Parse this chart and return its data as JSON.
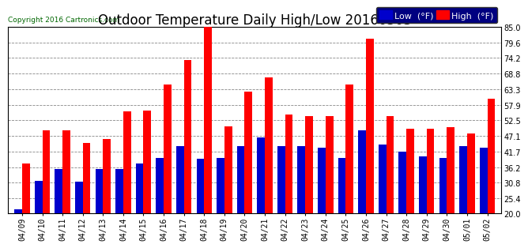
{
  "title": "Outdoor Temperature Daily High/Low 20160503",
  "copyright": "Copyright 2016 Cartronics.com",
  "legend_low": "Low  (°F)",
  "legend_high": "High  (°F)",
  "dates": [
    "04/09",
    "04/10",
    "04/11",
    "04/12",
    "04/13",
    "04/14",
    "04/15",
    "04/16",
    "04/17",
    "04/18",
    "04/19",
    "04/20",
    "04/21",
    "04/22",
    "04/23",
    "04/24",
    "04/25",
    "04/26",
    "04/27",
    "04/28",
    "04/29",
    "04/30",
    "05/01",
    "05/02"
  ],
  "highs": [
    37.5,
    49.0,
    49.0,
    44.5,
    46.0,
    55.5,
    56.0,
    65.0,
    73.5,
    85.0,
    50.5,
    62.5,
    67.5,
    54.5,
    54.0,
    54.0,
    65.0,
    81.0,
    54.0,
    49.5,
    49.5,
    50.0,
    48.0,
    60.0
  ],
  "lows": [
    21.5,
    31.5,
    35.5,
    31.0,
    35.5,
    35.5,
    37.5,
    39.5,
    43.5,
    39.0,
    39.5,
    43.5,
    46.5,
    43.5,
    43.5,
    43.0,
    39.5,
    49.0,
    44.0,
    41.5,
    40.0,
    39.5,
    43.5,
    43.0
  ],
  "ylim": [
    20.0,
    85.0
  ],
  "yticks": [
    20.0,
    25.4,
    30.8,
    36.2,
    41.7,
    47.1,
    52.5,
    57.9,
    63.3,
    68.8,
    74.2,
    79.6,
    85.0
  ],
  "color_high": "#ff0000",
  "color_low": "#0000cc",
  "bg_color": "#ffffff",
  "grid_color": "#888888",
  "bar_width": 0.38,
  "title_fontsize": 12,
  "tick_fontsize": 7,
  "legend_fontsize": 8,
  "ybase": 20.0
}
